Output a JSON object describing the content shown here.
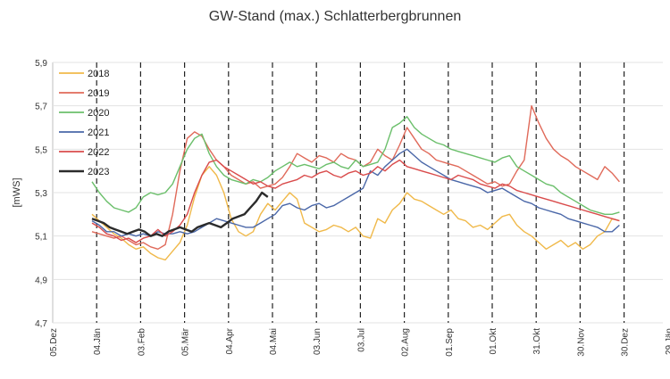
{
  "chart_data": {
    "type": "line",
    "title": "GW-Stand (max.) Schlatterbergbrunnen",
    "ylabel": "[mWS]",
    "xlabel": "",
    "ylim": [
      4.7,
      5.9
    ],
    "yticks": [
      "4,7",
      "4,9",
      "5,1",
      "5,3",
      "5,5",
      "5,7",
      "5,9"
    ],
    "x_ticks": [
      "05.Dez",
      "04.Jän",
      "03.Feb",
      "05.Mär",
      "04.Apr",
      "04.Mai",
      "03.Jun",
      "03.Jul",
      "02.Aug",
      "01.Sep",
      "01.Okt",
      "31.Okt",
      "30.Nov",
      "30.Dez",
      "29.Jän"
    ],
    "grid": "horizontal",
    "legend_position": "top-left",
    "series": [
      {
        "name": "2018",
        "color": "#f0b94a",
        "x": [
          0,
          5,
          10,
          15,
          20,
          25,
          30,
          35,
          40,
          45,
          50,
          55,
          60,
          65,
          70,
          75,
          80,
          85,
          90,
          95,
          100,
          105,
          110,
          115,
          120,
          125,
          130,
          135,
          140,
          145,
          150,
          155,
          160,
          165,
          170,
          175,
          180,
          185,
          190,
          195,
          200,
          205,
          210,
          215,
          220,
          225,
          230,
          235,
          240,
          245,
          250,
          255,
          260,
          265,
          270,
          275,
          280,
          285,
          290,
          295,
          300,
          305,
          310,
          315,
          320,
          325,
          330,
          335,
          340,
          345,
          350,
          355,
          360
        ],
        "y": [
          5.2,
          5.17,
          5.14,
          5.11,
          5.09,
          5.06,
          5.04,
          5.05,
          5.02,
          5.0,
          4.99,
          5.03,
          5.07,
          5.15,
          5.28,
          5.38,
          5.42,
          5.38,
          5.3,
          5.18,
          5.12,
          5.1,
          5.12,
          5.2,
          5.25,
          5.22,
          5.26,
          5.3,
          5.27,
          5.16,
          5.14,
          5.12,
          5.13,
          5.15,
          5.14,
          5.12,
          5.14,
          5.1,
          5.09,
          5.18,
          5.16,
          5.22,
          5.25,
          5.3,
          5.27,
          5.26,
          5.24,
          5.22,
          5.2,
          5.22,
          5.18,
          5.17,
          5.14,
          5.15,
          5.13,
          5.16,
          5.19,
          5.2,
          5.15,
          5.12,
          5.1,
          5.07,
          5.04,
          5.06,
          5.08,
          5.05,
          5.07,
          5.04,
          5.06,
          5.1,
          5.12,
          5.18,
          5.17
        ]
      },
      {
        "name": "2019",
        "color": "#e06a5a",
        "x": [
          0,
          5,
          10,
          15,
          20,
          25,
          30,
          35,
          40,
          45,
          50,
          55,
          60,
          65,
          70,
          75,
          80,
          85,
          90,
          95,
          100,
          105,
          110,
          115,
          120,
          125,
          130,
          135,
          140,
          145,
          150,
          155,
          160,
          165,
          170,
          175,
          180,
          185,
          190,
          195,
          200,
          205,
          210,
          215,
          220,
          225,
          230,
          235,
          240,
          245,
          250,
          255,
          260,
          265,
          270,
          275,
          280,
          285,
          290,
          295,
          300,
          305,
          310,
          315,
          320,
          325,
          330,
          335,
          340,
          345,
          350,
          355,
          360
        ],
        "y": [
          5.12,
          5.11,
          5.1,
          5.09,
          5.1,
          5.08,
          5.06,
          5.07,
          5.05,
          5.04,
          5.06,
          5.2,
          5.4,
          5.55,
          5.58,
          5.56,
          5.5,
          5.45,
          5.42,
          5.38,
          5.36,
          5.34,
          5.35,
          5.32,
          5.33,
          5.34,
          5.37,
          5.42,
          5.48,
          5.46,
          5.44,
          5.47,
          5.46,
          5.44,
          5.48,
          5.46,
          5.45,
          5.42,
          5.44,
          5.5,
          5.47,
          5.45,
          5.52,
          5.6,
          5.55,
          5.5,
          5.48,
          5.45,
          5.44,
          5.43,
          5.42,
          5.4,
          5.38,
          5.36,
          5.34,
          5.35,
          5.33,
          5.34,
          5.4,
          5.45,
          5.7,
          5.62,
          5.55,
          5.5,
          5.47,
          5.45,
          5.42,
          5.4,
          5.38,
          5.36,
          5.42,
          5.39,
          5.35
        ]
      },
      {
        "name": "2020",
        "color": "#6bbf6b",
        "x": [
          0,
          5,
          10,
          15,
          20,
          25,
          30,
          35,
          40,
          45,
          50,
          55,
          60,
          65,
          70,
          75,
          80,
          85,
          90,
          95,
          100,
          105,
          110,
          115,
          120,
          125,
          130,
          135,
          140,
          145,
          150,
          155,
          160,
          165,
          170,
          175,
          180,
          185,
          190,
          195,
          200,
          205,
          210,
          215,
          220,
          225,
          230,
          235,
          240,
          245,
          250,
          255,
          260,
          265,
          270,
          275,
          280,
          285,
          290,
          295,
          300,
          305,
          310,
          315,
          320,
          325,
          330,
          335,
          340,
          345,
          350,
          355,
          360
        ],
        "y": [
          5.35,
          5.3,
          5.26,
          5.23,
          5.22,
          5.21,
          5.23,
          5.28,
          5.3,
          5.29,
          5.3,
          5.34,
          5.42,
          5.5,
          5.55,
          5.57,
          5.48,
          5.42,
          5.38,
          5.36,
          5.35,
          5.34,
          5.36,
          5.35,
          5.37,
          5.4,
          5.42,
          5.44,
          5.42,
          5.43,
          5.42,
          5.41,
          5.43,
          5.44,
          5.42,
          5.41,
          5.45,
          5.42,
          5.43,
          5.44,
          5.5,
          5.6,
          5.62,
          5.65,
          5.6,
          5.57,
          5.55,
          5.53,
          5.52,
          5.5,
          5.49,
          5.48,
          5.47,
          5.46,
          5.45,
          5.44,
          5.46,
          5.47,
          5.42,
          5.4,
          5.38,
          5.36,
          5.34,
          5.33,
          5.3,
          5.28,
          5.26,
          5.24,
          5.22,
          5.21,
          5.2,
          5.2,
          5.21
        ]
      },
      {
        "name": "2021",
        "color": "#4a67a8",
        "x": [
          0,
          5,
          10,
          15,
          20,
          25,
          30,
          35,
          40,
          45,
          50,
          55,
          60,
          65,
          70,
          75,
          80,
          85,
          90,
          95,
          100,
          105,
          110,
          115,
          120,
          125,
          130,
          135,
          140,
          145,
          150,
          155,
          160,
          165,
          170,
          175,
          180,
          185,
          190,
          195,
          200,
          205,
          210,
          215,
          220,
          225,
          230,
          235,
          240,
          245,
          250,
          255,
          260,
          265,
          270,
          275,
          280,
          285,
          290,
          295,
          300,
          305,
          310,
          315,
          320,
          325,
          330,
          335,
          340,
          345,
          350,
          355,
          360
        ],
        "y": [
          5.17,
          5.15,
          5.12,
          5.12,
          5.1,
          5.11,
          5.1,
          5.11,
          5.1,
          5.12,
          5.11,
          5.11,
          5.12,
          5.11,
          5.12,
          5.14,
          5.16,
          5.18,
          5.17,
          5.16,
          5.15,
          5.14,
          5.14,
          5.16,
          5.18,
          5.2,
          5.24,
          5.25,
          5.23,
          5.22,
          5.24,
          5.25,
          5.23,
          5.24,
          5.26,
          5.28,
          5.3,
          5.32,
          5.4,
          5.38,
          5.42,
          5.45,
          5.48,
          5.5,
          5.47,
          5.44,
          5.42,
          5.4,
          5.38,
          5.36,
          5.35,
          5.34,
          5.33,
          5.32,
          5.3,
          5.31,
          5.32,
          5.3,
          5.28,
          5.26,
          5.25,
          5.23,
          5.22,
          5.21,
          5.2,
          5.18,
          5.17,
          5.16,
          5.15,
          5.14,
          5.12,
          5.12,
          5.15
        ]
      },
      {
        "name": "2022",
        "color": "#d94b4b",
        "x": [
          0,
          5,
          10,
          15,
          20,
          25,
          30,
          35,
          40,
          45,
          50,
          55,
          60,
          65,
          70,
          75,
          80,
          85,
          90,
          95,
          100,
          105,
          110,
          115,
          120,
          125,
          130,
          135,
          140,
          145,
          150,
          155,
          160,
          165,
          170,
          175,
          180,
          185,
          190,
          195,
          200,
          205,
          210,
          215,
          220,
          225,
          230,
          235,
          240,
          245,
          250,
          255,
          260,
          265,
          270,
          275,
          280,
          285,
          290,
          295,
          300,
          305,
          310,
          315,
          320,
          325,
          330,
          335,
          340,
          345,
          350,
          355,
          360
        ],
        "y": [
          5.16,
          5.14,
          5.11,
          5.1,
          5.08,
          5.09,
          5.07,
          5.09,
          5.1,
          5.13,
          5.1,
          5.12,
          5.15,
          5.2,
          5.3,
          5.38,
          5.44,
          5.45,
          5.42,
          5.4,
          5.38,
          5.36,
          5.34,
          5.35,
          5.33,
          5.32,
          5.34,
          5.35,
          5.36,
          5.38,
          5.37,
          5.39,
          5.4,
          5.38,
          5.37,
          5.39,
          5.4,
          5.38,
          5.39,
          5.42,
          5.4,
          5.43,
          5.45,
          5.42,
          5.41,
          5.4,
          5.39,
          5.38,
          5.37,
          5.36,
          5.38,
          5.37,
          5.36,
          5.34,
          5.33,
          5.32,
          5.34,
          5.33,
          5.31,
          5.3,
          5.29,
          5.28,
          5.27,
          5.26,
          5.25,
          5.24,
          5.23,
          5.22,
          5.21,
          5.2,
          5.19,
          5.18,
          5.17
        ]
      },
      {
        "name": "2023",
        "color": "#2b2b2b",
        "x": [
          0,
          4,
          8,
          12,
          16,
          20,
          24,
          28,
          32,
          36,
          40,
          44,
          48,
          52,
          56,
          60,
          64,
          68,
          72,
          76,
          80,
          84,
          88,
          92,
          96,
          100,
          104,
          108,
          112,
          116,
          120
        ],
        "y": [
          5.18,
          5.17,
          5.16,
          5.14,
          5.13,
          5.12,
          5.11,
          5.12,
          5.13,
          5.12,
          5.1,
          5.11,
          5.1,
          5.12,
          5.13,
          5.14,
          5.13,
          5.12,
          5.14,
          5.15,
          5.16,
          5.15,
          5.14,
          5.16,
          5.18,
          5.19,
          5.2,
          5.23,
          5.26,
          5.3,
          5.28
        ]
      }
    ]
  }
}
